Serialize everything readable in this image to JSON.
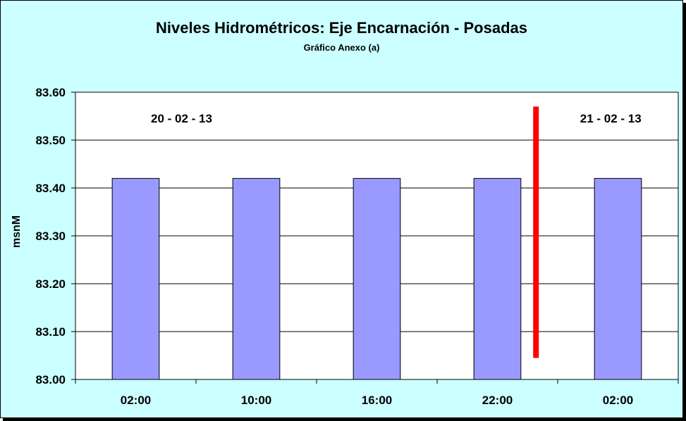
{
  "chart_data": {
    "type": "bar",
    "title": "Niveles Hidrométricos: Eje Encarnación - Posadas",
    "subtitle": "Gráfico Anexo (a)",
    "ylabel": "msnM",
    "xlabel": "",
    "categories": [
      "02:00",
      "10:00",
      "16:00",
      "22:00",
      "02:00"
    ],
    "values": [
      83.42,
      83.42,
      83.42,
      83.42,
      83.42
    ],
    "ylim": [
      83.0,
      83.6
    ],
    "yticks": [
      "83.00",
      "83.10",
      "83.20",
      "83.30",
      "83.40",
      "83.50",
      "83.60"
    ],
    "grid": true,
    "bar_color": "#9999ff",
    "plot_background": "#ffffff",
    "chart_background": "#ccffff",
    "date_labels": [
      "20 - 02 - 13",
      "21 - 02 - 13"
    ],
    "day_separator": {
      "after_category_index": 3,
      "y_from": 83.045,
      "y_to": 83.57,
      "color": "#ff0000"
    }
  }
}
